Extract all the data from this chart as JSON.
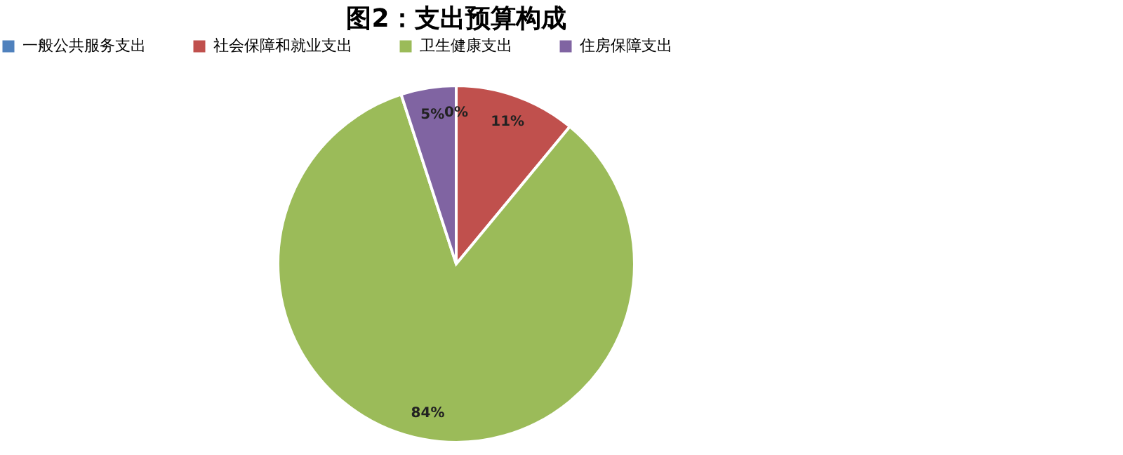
{
  "chart_data": {
    "type": "pie",
    "title": "图2：支出预算构成",
    "categories": [
      "一般公共服务支出",
      "社会保障和就业支出",
      "卫生健康支出",
      "住房保障支出"
    ],
    "values": [
      0,
      11,
      84,
      5
    ],
    "colors": [
      "#4f81bd",
      "#c0504d",
      "#9bbb59",
      "#8064a2"
    ],
    "value_labels": [
      "0%",
      "11%",
      "84%",
      "5%"
    ],
    "legend": "top"
  }
}
